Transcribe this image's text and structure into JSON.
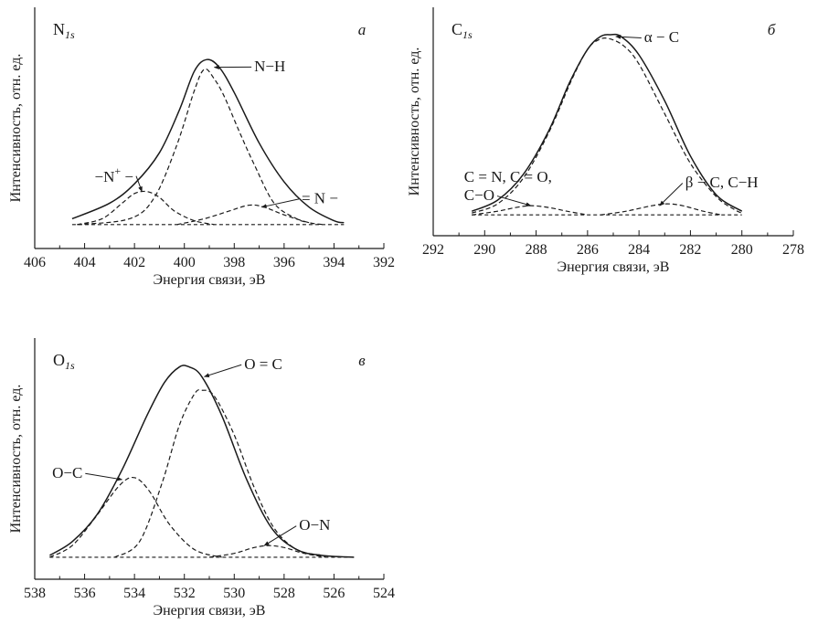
{
  "chart_data": [
    {
      "type": "line",
      "id": "a",
      "title_main": "N",
      "title_sub": "1s",
      "panel_letter": "а",
      "xlabel": "Энергия связи, эВ",
      "ylabel": "Интенсивность, отн. ед.",
      "xlim": [
        406,
        392
      ],
      "x_reversed": true,
      "x_ticks": [
        406,
        404,
        402,
        400,
        398,
        396,
        394,
        392
      ],
      "tick_labels": [
        "406",
        "404",
        "402",
        "400",
        "398",
        "396",
        "394",
        "392"
      ],
      "y_hidden": true,
      "baseline": [
        [
          404.5,
          0.03
        ],
        [
          393.6,
          0.03
        ]
      ],
      "series": [
        {
          "style": "solid",
          "points": [
            [
              404.5,
              0.06
            ],
            [
              403,
              0.14
            ],
            [
              402,
              0.24
            ],
            [
              401,
              0.4
            ],
            [
              400.2,
              0.62
            ],
            [
              399.6,
              0.82
            ],
            [
              399.1,
              0.88
            ],
            [
              398.6,
              0.84
            ],
            [
              398,
              0.71
            ],
            [
              397,
              0.45
            ],
            [
              396,
              0.25
            ],
            [
              395,
              0.12
            ],
            [
              394,
              0.05
            ],
            [
              393.6,
              0.04
            ]
          ]
        },
        {
          "style": "dashed",
          "points": [
            [
              404.3,
              0.03
            ],
            [
              402.2,
              0.06
            ],
            [
              401.2,
              0.17
            ],
            [
              400.3,
              0.44
            ],
            [
              399.6,
              0.72
            ],
            [
              399.2,
              0.83
            ],
            [
              398.8,
              0.78
            ],
            [
              398.4,
              0.69
            ],
            [
              397.8,
              0.51
            ],
            [
              397.2,
              0.34
            ],
            [
              396.4,
              0.14
            ],
            [
              395.5,
              0.06
            ],
            [
              395,
              0.04
            ]
          ]
        },
        {
          "style": "dashed",
          "points": [
            [
              404.3,
              0.03
            ],
            [
              403.3,
              0.06
            ],
            [
              402.5,
              0.14
            ],
            [
              402,
              0.19
            ],
            [
              401.5,
              0.2
            ],
            [
              401,
              0.17
            ],
            [
              400.4,
              0.1
            ],
            [
              399.6,
              0.05
            ],
            [
              398.8,
              0.03
            ]
          ]
        },
        {
          "style": "dashed",
          "points": [
            [
              400.3,
              0.03
            ],
            [
              399.2,
              0.06
            ],
            [
              398.2,
              0.1
            ],
            [
              397.4,
              0.13
            ],
            [
              396.8,
              0.12
            ],
            [
              396,
              0.08
            ],
            [
              395,
              0.04
            ],
            [
              394.4,
              0.03
            ]
          ]
        }
      ],
      "annotations": [
        {
          "text": "N−H",
          "x": 397.2,
          "y": 0.82,
          "ax": 398.8,
          "ay": 0.84
        },
        {
          "text": "−N",
          "sup": "+",
          "tail": " −",
          "x": 403.6,
          "y": 0.25,
          "ax": 401.7,
          "ay": 0.2
        },
        {
          "text": "= N −",
          "x": 395.3,
          "y": 0.14,
          "ax": 396.9,
          "ay": 0.12
        }
      ]
    },
    {
      "type": "line",
      "id": "b",
      "title_main": "C",
      "title_sub": "1s",
      "panel_letter": "б",
      "xlabel": "Энергия связи, эВ",
      "ylabel": "Интенсивность, отн. ед.",
      "xlim": [
        292,
        278
      ],
      "x_reversed": true,
      "x_ticks": [
        292,
        290,
        288,
        286,
        284,
        282,
        280,
        278
      ],
      "tick_labels": [
        "292",
        "290",
        "288",
        "286",
        "284",
        "282",
        "280",
        "278"
      ],
      "y_hidden": true,
      "baseline": [
        [
          290.5,
          0.02
        ],
        [
          280,
          0.02
        ]
      ],
      "series": [
        {
          "style": "solid",
          "points": [
            [
              290.5,
              0.04
            ],
            [
              289.5,
              0.1
            ],
            [
              288.5,
              0.24
            ],
            [
              287.5,
              0.48
            ],
            [
              286.7,
              0.74
            ],
            [
              286,
              0.92
            ],
            [
              285.5,
              0.99
            ],
            [
              285.1,
              1.0
            ],
            [
              284.7,
              0.99
            ],
            [
              284,
              0.89
            ],
            [
              283,
              0.64
            ],
            [
              282,
              0.34
            ],
            [
              281,
              0.13
            ],
            [
              280,
              0.04
            ]
          ]
        },
        {
          "style": "dashed",
          "points": [
            [
              290.5,
              0.03
            ],
            [
              289.5,
              0.08
            ],
            [
              288.5,
              0.22
            ],
            [
              287.5,
              0.47
            ],
            [
              286.6,
              0.76
            ],
            [
              286,
              0.92
            ],
            [
              285.6,
              0.97
            ],
            [
              285.2,
              0.98
            ],
            [
              284.6,
              0.94
            ],
            [
              284,
              0.84
            ],
            [
              283,
              0.57
            ],
            [
              282,
              0.3
            ],
            [
              281,
              0.12
            ],
            [
              280.3,
              0.05
            ],
            [
              280,
              0.03
            ]
          ]
        },
        {
          "style": "dashed",
          "points": [
            [
              290.5,
              0.02
            ],
            [
              289.5,
              0.04
            ],
            [
              288.8,
              0.06
            ],
            [
              288.2,
              0.07
            ],
            [
              287.5,
              0.06
            ],
            [
              286.8,
              0.04
            ],
            [
              286,
              0.02
            ]
          ]
        },
        {
          "style": "dashed",
          "points": [
            [
              285.5,
              0.02
            ],
            [
              284.5,
              0.04
            ],
            [
              283.5,
              0.07
            ],
            [
              282.9,
              0.08
            ],
            [
              282.3,
              0.07
            ],
            [
              281.5,
              0.04
            ],
            [
              280.8,
              0.02
            ]
          ]
        }
      ],
      "annotations": [
        {
          "text": "α − C",
          "x": 283.8,
          "y": 0.96,
          "ax": 284.9,
          "ay": 0.99
        },
        {
          "text": "C = N, C = O,",
          "x": 290.8,
          "y": 0.2,
          "ax": null,
          "ay": null
        },
        {
          "text": "C−O",
          "x": 290.8,
          "y": 0.1,
          "ax": 288.2,
          "ay": 0.07
        },
        {
          "text": "β − C, C−H",
          "x": 282.2,
          "y": 0.17,
          "ax": 283.2,
          "ay": 0.07
        }
      ]
    },
    {
      "type": "line",
      "id": "c",
      "title_main": "O",
      "title_sub": "1s",
      "panel_letter": "в",
      "xlabel": "Энергия связи, эВ",
      "ylabel": "Интенсивность, отн. ед.",
      "xlim": [
        538,
        524
      ],
      "x_reversed": true,
      "x_ticks": [
        538,
        536,
        534,
        532,
        530,
        528,
        526,
        524
      ],
      "tick_labels": [
        "538",
        "536",
        "534",
        "532",
        "530",
        "528",
        "526",
        "524"
      ],
      "y_hidden": true,
      "baseline": [
        [
          537.4,
          0.02
        ],
        [
          525.2,
          0.02
        ]
      ],
      "series": [
        {
          "style": "solid",
          "points": [
            [
              537.4,
              0.03
            ],
            [
              536.5,
              0.1
            ],
            [
              535.5,
              0.24
            ],
            [
              534.5,
              0.47
            ],
            [
              533.5,
              0.75
            ],
            [
              532.8,
              0.92
            ],
            [
              532.2,
              1.0
            ],
            [
              531.8,
              1.0
            ],
            [
              531.3,
              0.95
            ],
            [
              530.5,
              0.75
            ],
            [
              529.5,
              0.42
            ],
            [
              528.5,
              0.17
            ],
            [
              527.5,
              0.06
            ],
            [
              526.5,
              0.03
            ],
            [
              525.2,
              0.02
            ]
          ]
        },
        {
          "style": "dashed",
          "points": [
            [
              534.8,
              0.02
            ],
            [
              533.8,
              0.1
            ],
            [
              532.9,
              0.4
            ],
            [
              532.2,
              0.7
            ],
            [
              531.6,
              0.86
            ],
            [
              531.3,
              0.88
            ],
            [
              530.8,
              0.85
            ],
            [
              530,
              0.65
            ],
            [
              529.2,
              0.38
            ],
            [
              528.4,
              0.17
            ],
            [
              527.5,
              0.06
            ],
            [
              526.5,
              0.03
            ]
          ]
        },
        {
          "style": "dashed",
          "points": [
            [
              537.4,
              0.02
            ],
            [
              536.5,
              0.08
            ],
            [
              535.6,
              0.22
            ],
            [
              534.6,
              0.39
            ],
            [
              534,
              0.43
            ],
            [
              533.4,
              0.36
            ],
            [
              532.6,
              0.19
            ],
            [
              531.6,
              0.06
            ],
            [
              530.5,
              0.02
            ]
          ]
        },
        {
          "style": "dashed",
          "points": [
            [
              531,
              0.02
            ],
            [
              530,
              0.04
            ],
            [
              529.2,
              0.07
            ],
            [
              528.6,
              0.08
            ],
            [
              528,
              0.07
            ],
            [
              527.2,
              0.04
            ],
            [
              526.3,
              0.02
            ]
          ]
        }
      ],
      "annotations": [
        {
          "text": "O = C",
          "x": 529.6,
          "y": 0.99,
          "ax": 531.2,
          "ay": 0.95
        },
        {
          "text": "O−C",
          "x": 537.3,
          "y": 0.43,
          "ax": 534.5,
          "ay": 0.42
        },
        {
          "text": "O−N",
          "x": 527.4,
          "y": 0.16,
          "ax": 528.8,
          "ay": 0.08
        }
      ]
    }
  ]
}
